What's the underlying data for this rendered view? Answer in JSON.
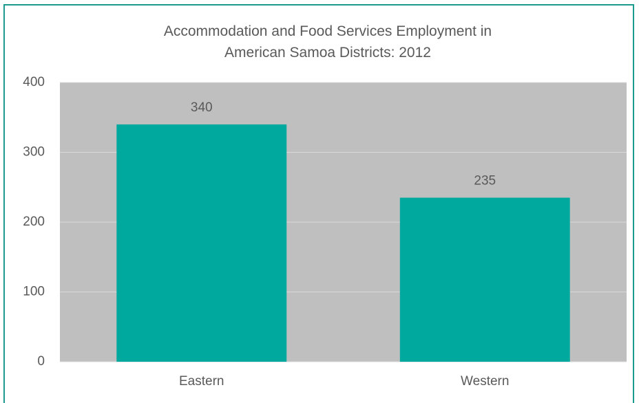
{
  "chart_data": {
    "type": "bar",
    "title": "Accommodation and Food Services Employment in American Samoa Districts: 2012",
    "categories": [
      "Eastern",
      "Western"
    ],
    "values": [
      340,
      235
    ],
    "color": "#00a99d",
    "ylim": [
      0,
      400
    ],
    "yticks": [
      0,
      100,
      200,
      300,
      400
    ],
    "grid": true
  }
}
